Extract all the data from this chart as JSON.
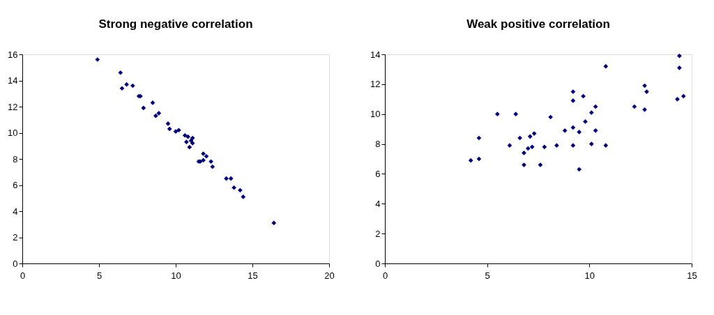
{
  "chart_data": [
    {
      "type": "scatter",
      "title": "Strong negative correlation",
      "marker": "diamond",
      "grid": false,
      "x": [
        4.9,
        6.4,
        6.5,
        6.8,
        7.2,
        7.6,
        7.7,
        7.9,
        8.5,
        8.7,
        8.9,
        9.5,
        9.6,
        10.0,
        10.2,
        10.6,
        10.8,
        10.7,
        11.0,
        11.1,
        10.9,
        11.1,
        11.5,
        11.8,
        11.8,
        11.6,
        12.0,
        12.3,
        12.4,
        13.3,
        13.6,
        13.8,
        14.2,
        14.4,
        16.4
      ],
      "series": [
        {
          "color": "#000080",
          "values": [
            15.6,
            14.6,
            13.4,
            13.7,
            13.6,
            12.8,
            12.8,
            11.9,
            12.3,
            11.3,
            11.5,
            10.7,
            10.3,
            10.1,
            10.2,
            9.8,
            9.7,
            9.3,
            9.4,
            9.2,
            8.9,
            9.6,
            7.8,
            8.4,
            7.9,
            7.8,
            8.2,
            7.8,
            7.4,
            6.5,
            6.5,
            5.8,
            5.6,
            5.1,
            3.1
          ]
        }
      ],
      "xlim": [
        0,
        20
      ],
      "xticks": [
        0,
        5,
        10,
        15,
        20
      ],
      "ylim": [
        0,
        16
      ],
      "yticks": [
        0,
        2,
        4,
        6,
        8,
        10,
        12,
        14,
        16
      ]
    },
    {
      "type": "scatter",
      "title": "Weak positive correlation",
      "marker": "diamond",
      "grid": false,
      "x": [
        4.2,
        4.6,
        4.6,
        5.5,
        6.1,
        6.4,
        6.6,
        6.8,
        6.8,
        7.0,
        7.2,
        7.1,
        7.3,
        7.6,
        7.8,
        8.1,
        8.4,
        8.8,
        9.2,
        9.5,
        9.2,
        9.5,
        9.2,
        9.2,
        9.7,
        9.8,
        10.1,
        10.3,
        10.1,
        10.3,
        10.8,
        10.8,
        12.2,
        12.7,
        12.8,
        12.7,
        14.3,
        14.4,
        14.4,
        14.6
      ],
      "series": [
        {
          "color": "#000080",
          "values": [
            6.9,
            7.0,
            8.4,
            10.0,
            7.9,
            10.0,
            8.4,
            7.4,
            6.6,
            7.7,
            7.8,
            8.5,
            8.7,
            6.6,
            7.8,
            9.8,
            7.9,
            8.9,
            9.1,
            8.8,
            7.9,
            6.3,
            10.9,
            11.5,
            11.2,
            9.5,
            10.1,
            10.5,
            8.0,
            8.9,
            13.2,
            7.9,
            10.5,
            11.9,
            11.5,
            10.3,
            11.0,
            13.9,
            13.1,
            11.2
          ]
        }
      ],
      "xlim": [
        0,
        15
      ],
      "xticks": [
        0,
        5,
        10,
        15
      ],
      "ylim": [
        0,
        14
      ],
      "yticks": [
        0,
        2,
        4,
        6,
        8,
        10,
        12,
        14
      ]
    }
  ]
}
